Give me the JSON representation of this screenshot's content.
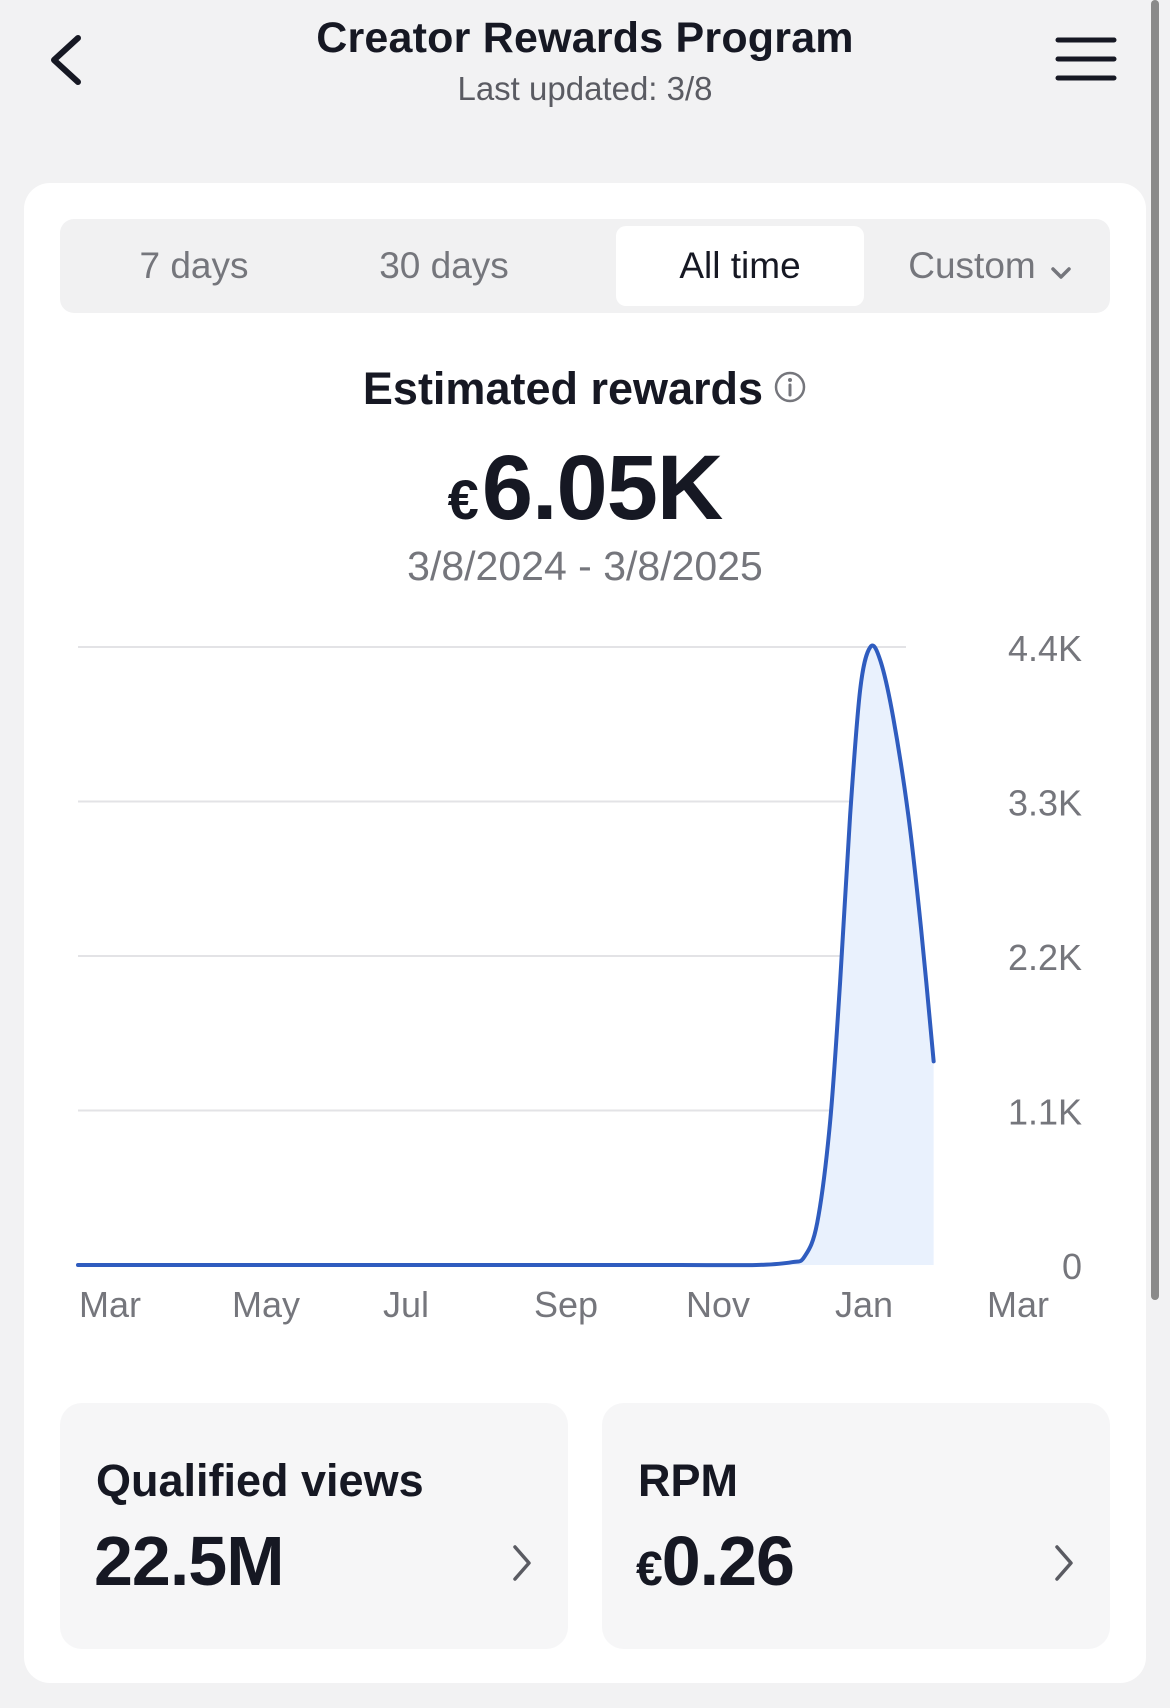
{
  "header": {
    "title": "Creator Rewards Program",
    "subtitle": "Last updated: 3/8",
    "back_icon": "chevron-left-icon",
    "menu_icon": "hamburger-menu-icon"
  },
  "tabs": [
    {
      "label": "7 days",
      "active": false
    },
    {
      "label": "30 days",
      "active": false
    },
    {
      "label": "All time",
      "active": true
    },
    {
      "label": "Custom",
      "active": false,
      "icon": "chevron-down-icon"
    }
  ],
  "metric": {
    "title": "Estimated rewards",
    "info_icon": "info-icon",
    "currency": "€",
    "value": "6.05K",
    "date_range": "3/8/2024 - 3/8/2025"
  },
  "chart_data": {
    "type": "area",
    "x_ticks": [
      "Mar",
      "May",
      "Jul",
      "Sep",
      "Nov",
      "Jan",
      "Mar"
    ],
    "y_ticks": [
      "0",
      "1.1K",
      "2.2K",
      "3.3K",
      "4.4K"
    ],
    "ylim": [
      0,
      4400
    ],
    "grid": true,
    "y_axis_side": "right",
    "line_color": "#2f5cbf",
    "fill_color": "#e9f1fd",
    "series": [
      {
        "points": [
          [
            "2024-03-08",
            0
          ],
          [
            "2024-05-01",
            0
          ],
          [
            "2024-07-01",
            0
          ],
          [
            "2024-09-01",
            0
          ],
          [
            "2024-11-01",
            0
          ],
          [
            "2024-12-01",
            0
          ],
          [
            "2024-12-15",
            20
          ],
          [
            "2024-12-20",
            60
          ],
          [
            "2024-12-25",
            300
          ],
          [
            "2024-12-30",
            1000
          ],
          [
            "2025-01-03",
            2000
          ],
          [
            "2025-01-07",
            3200
          ],
          [
            "2025-01-11",
            4100
          ],
          [
            "2025-01-15",
            4400
          ],
          [
            "2025-01-19",
            4300
          ],
          [
            "2025-01-24",
            3900
          ],
          [
            "2025-01-30",
            3200
          ],
          [
            "2025-02-04",
            2400
          ],
          [
            "2025-02-09",
            1450
          ]
        ]
      }
    ]
  },
  "stats": [
    {
      "label": "Qualified views",
      "currency": "",
      "value": "22.5M",
      "icon": "chevron-right-icon"
    },
    {
      "label": "RPM",
      "currency": "€",
      "value": "0.26",
      "icon": "chevron-right-icon"
    }
  ]
}
